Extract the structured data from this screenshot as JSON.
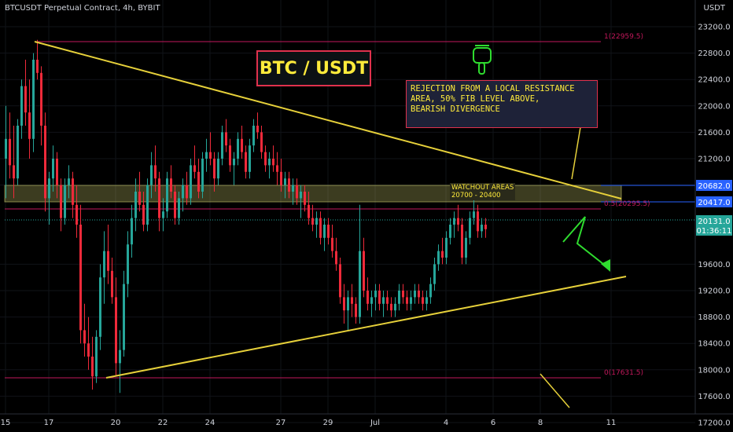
{
  "header": {
    "symbol_line": "BTCUSDT Perpetual Contract, 4h, BYBIT"
  },
  "price_axis": {
    "unit": "USDT",
    "ticks": [
      "23200.0",
      "22800.0",
      "22400.0",
      "22000.0",
      "21600.0",
      "21200.0",
      "20800.0",
      "19600.0",
      "19200.0",
      "18800.0",
      "18400.0",
      "18000.0",
      "17600.0",
      "17200.0"
    ],
    "price_tag_1": "20682.0",
    "price_tag_2": "20417.0",
    "last_price": "20131.0",
    "countdown": "01:36:11"
  },
  "time_axis": {
    "ticks": [
      "15",
      "17",
      "20",
      "22",
      "24",
      "27",
      "29",
      "Jul",
      "4",
      "6",
      "8",
      "11"
    ]
  },
  "annotations": {
    "banner": "BTC / USDT",
    "note_lines": [
      "REJECTION FROM A LOCAL RESISTANCE",
      "AREA, 50% FIB LEVEL ABOVE,",
      "BEARISH DIVERGENCE"
    ],
    "watch_lines": [
      "WATCHOUT AREAS",
      "20700 - 20400"
    ],
    "fib_top": "1(22959.5)",
    "fib_mid": "0.5(20295.5)",
    "fib_bottom": "0(17631.5)"
  },
  "colors": {
    "up": "#26a69a",
    "down": "#ef2a3a",
    "trend": "#e6d03a",
    "fib": "#c2185b",
    "tag": "#2962ff",
    "zone": "#c8c86a"
  },
  "chart_data": {
    "type": "candlestick",
    "title": "BTCUSDT Perpetual Contract, 4h, BYBIT",
    "ylabel": "USDT",
    "ylim": [
      17000,
      23400
    ],
    "x_ticks": [
      {
        "label": "15",
        "index": 0
      },
      {
        "label": "17",
        "index": 11
      },
      {
        "label": "20",
        "index": 28
      },
      {
        "label": "22",
        "index": 40
      },
      {
        "label": "24",
        "index": 52
      },
      {
        "label": "27",
        "index": 70
      },
      {
        "label": "29",
        "index": 82
      },
      {
        "label": "Jul",
        "index": 94
      },
      {
        "label": "4",
        "index": 112
      },
      {
        "label": "6",
        "index": 124
      },
      {
        "label": "8",
        "index": 136
      },
      {
        "label": "11",
        "index": 154
      }
    ],
    "candles": [
      [
        21200,
        22000,
        20600,
        21500
      ],
      [
        21500,
        21900,
        20900,
        21100
      ],
      [
        21100,
        21700,
        20600,
        20900
      ],
      [
        20900,
        21800,
        20800,
        21700
      ],
      [
        21700,
        22400,
        21500,
        22300
      ],
      [
        22300,
        22700,
        21700,
        21900
      ],
      [
        21900,
        22400,
        21200,
        21500
      ],
      [
        21500,
        22800,
        21300,
        22700
      ],
      [
        22700,
        23000,
        22400,
        22500
      ],
      [
        22500,
        22600,
        21400,
        21700
      ],
      [
        21700,
        21900,
        20400,
        20600
      ],
      [
        20600,
        21000,
        20200,
        20900
      ],
      [
        20900,
        21400,
        20700,
        21200
      ],
      [
        21200,
        21300,
        20600,
        20800
      ],
      [
        20800,
        20900,
        20100,
        20300
      ],
      [
        20300,
        20900,
        20200,
        20800
      ],
      [
        20800,
        21100,
        20600,
        20900
      ],
      [
        20900,
        21000,
        20300,
        20500
      ],
      [
        20500,
        20800,
        20000,
        20200
      ],
      [
        20200,
        20500,
        18400,
        18600
      ],
      [
        18600,
        19000,
        18200,
        18400
      ],
      [
        18400,
        18800,
        18000,
        18200
      ],
      [
        18200,
        18500,
        17700,
        17900
      ],
      [
        17900,
        18600,
        17800,
        18500
      ],
      [
        18500,
        19600,
        18300,
        19400
      ],
      [
        19400,
        20100,
        19000,
        19800
      ],
      [
        19800,
        20200,
        19300,
        19500
      ],
      [
        19500,
        19700,
        19000,
        19100
      ],
      [
        19100,
        19400,
        17900,
        18100
      ],
      [
        18100,
        18600,
        17650,
        18300
      ],
      [
        18300,
        19500,
        18200,
        19300
      ],
      [
        19300,
        20100,
        19100,
        19900
      ],
      [
        19900,
        20500,
        19700,
        20300
      ],
      [
        20300,
        20900,
        20100,
        20700
      ],
      [
        20700,
        21000,
        20400,
        20500
      ],
      [
        20500,
        20700,
        20100,
        20200
      ],
      [
        20200,
        20900,
        20100,
        20800
      ],
      [
        20800,
        21300,
        20600,
        21100
      ],
      [
        21100,
        21400,
        20700,
        20900
      ],
      [
        20900,
        21000,
        20100,
        20300
      ],
      [
        20300,
        20600,
        20100,
        20400
      ],
      [
        20400,
        21000,
        20300,
        20900
      ],
      [
        20900,
        21100,
        20600,
        20700
      ],
      [
        20700,
        20800,
        20200,
        20300
      ],
      [
        20300,
        20700,
        20200,
        20600
      ],
      [
        20600,
        20900,
        20400,
        20800
      ],
      [
        20800,
        21000,
        20500,
        20600
      ],
      [
        20600,
        21200,
        20500,
        21100
      ],
      [
        21100,
        21400,
        20900,
        21000
      ],
      [
        21000,
        21200,
        20600,
        20700
      ],
      [
        20700,
        21300,
        20600,
        21200
      ],
      [
        21200,
        21500,
        21000,
        21300
      ],
      [
        21300,
        21600,
        21100,
        21200
      ],
      [
        21200,
        21300,
        20700,
        20900
      ],
      [
        20900,
        21300,
        20800,
        21200
      ],
      [
        21200,
        21700,
        21100,
        21600
      ],
      [
        21600,
        21800,
        21300,
        21400
      ],
      [
        21400,
        21500,
        21000,
        21100
      ],
      [
        21100,
        21300,
        20800,
        21200
      ],
      [
        21200,
        21600,
        21100,
        21500
      ],
      [
        21500,
        21700,
        21200,
        21300
      ],
      [
        21300,
        21400,
        20900,
        21000
      ],
      [
        21000,
        21500,
        20900,
        21400
      ],
      [
        21400,
        21800,
        21300,
        21700
      ],
      [
        21700,
        21900,
        21500,
        21600
      ],
      [
        21600,
        21700,
        21200,
        21300
      ],
      [
        21300,
        21400,
        21000,
        21100
      ],
      [
        21100,
        21300,
        20900,
        21200
      ],
      [
        21200,
        21400,
        21000,
        21100
      ],
      [
        21100,
        21300,
        20800,
        21000
      ],
      [
        21000,
        21200,
        20700,
        20800
      ],
      [
        20800,
        21000,
        20600,
        20900
      ],
      [
        20900,
        21000,
        20600,
        20700
      ],
      [
        20700,
        20900,
        20500,
        20800
      ],
      [
        20800,
        20900,
        20500,
        20600
      ],
      [
        20600,
        20800,
        20300,
        20700
      ],
      [
        20700,
        20800,
        20400,
        20500
      ],
      [
        20500,
        20700,
        20200,
        20300
      ],
      [
        20300,
        20500,
        20100,
        20200
      ],
      [
        20200,
        20400,
        20000,
        20300
      ],
      [
        20300,
        20400,
        19900,
        20000
      ],
      [
        20000,
        20300,
        19800,
        20200
      ],
      [
        20200,
        20300,
        19900,
        20000
      ],
      [
        20000,
        20200,
        19700,
        19800
      ],
      [
        19800,
        20000,
        19500,
        19600
      ],
      [
        19600,
        19700,
        19000,
        19100
      ],
      [
        19100,
        19300,
        18700,
        18900
      ],
      [
        18900,
        19200,
        18600,
        19100
      ],
      [
        19100,
        19300,
        18800,
        19000
      ],
      [
        19000,
        19100,
        18700,
        18800
      ],
      [
        18800,
        20500,
        18700,
        19800
      ],
      [
        19800,
        20000,
        19100,
        19200
      ],
      [
        19200,
        19400,
        18900,
        19000
      ],
      [
        19000,
        19200,
        18800,
        19100
      ],
      [
        19100,
        19300,
        18900,
        19200
      ],
      [
        19200,
        19300,
        18900,
        19000
      ],
      [
        19000,
        19200,
        18800,
        19100
      ],
      [
        19100,
        19200,
        18900,
        19000
      ],
      [
        19000,
        19100,
        18800,
        18900
      ],
      [
        18900,
        19100,
        18800,
        19000
      ],
      [
        19000,
        19300,
        18900,
        19200
      ],
      [
        19200,
        19300,
        19000,
        19100
      ],
      [
        19100,
        19200,
        18900,
        19000
      ],
      [
        19000,
        19200,
        18900,
        19100
      ],
      [
        19100,
        19300,
        19000,
        19200
      ],
      [
        19200,
        19300,
        19000,
        19100
      ],
      [
        19100,
        19200,
        18900,
        19000
      ],
      [
        19000,
        19200,
        18900,
        19100
      ],
      [
        19100,
        19400,
        19000,
        19300
      ],
      [
        19300,
        19700,
        19200,
        19600
      ],
      [
        19600,
        19900,
        19500,
        19800
      ],
      [
        19800,
        20000,
        19600,
        19700
      ],
      [
        19700,
        20100,
        19600,
        20000
      ],
      [
        20000,
        20300,
        19900,
        20200
      ],
      [
        20200,
        20400,
        20000,
        20300
      ],
      [
        20300,
        20500,
        20100,
        20200
      ],
      [
        20200,
        20300,
        19600,
        19700
      ],
      [
        19700,
        20100,
        19600,
        20000
      ],
      [
        20000,
        20400,
        19900,
        20300
      ],
      [
        20300,
        20700,
        20200,
        20400
      ],
      [
        20400,
        20500,
        20000,
        20100
      ],
      [
        20100,
        20300,
        20000,
        20200
      ],
      [
        20200,
        20300,
        20000,
        20131
      ]
    ]
  }
}
